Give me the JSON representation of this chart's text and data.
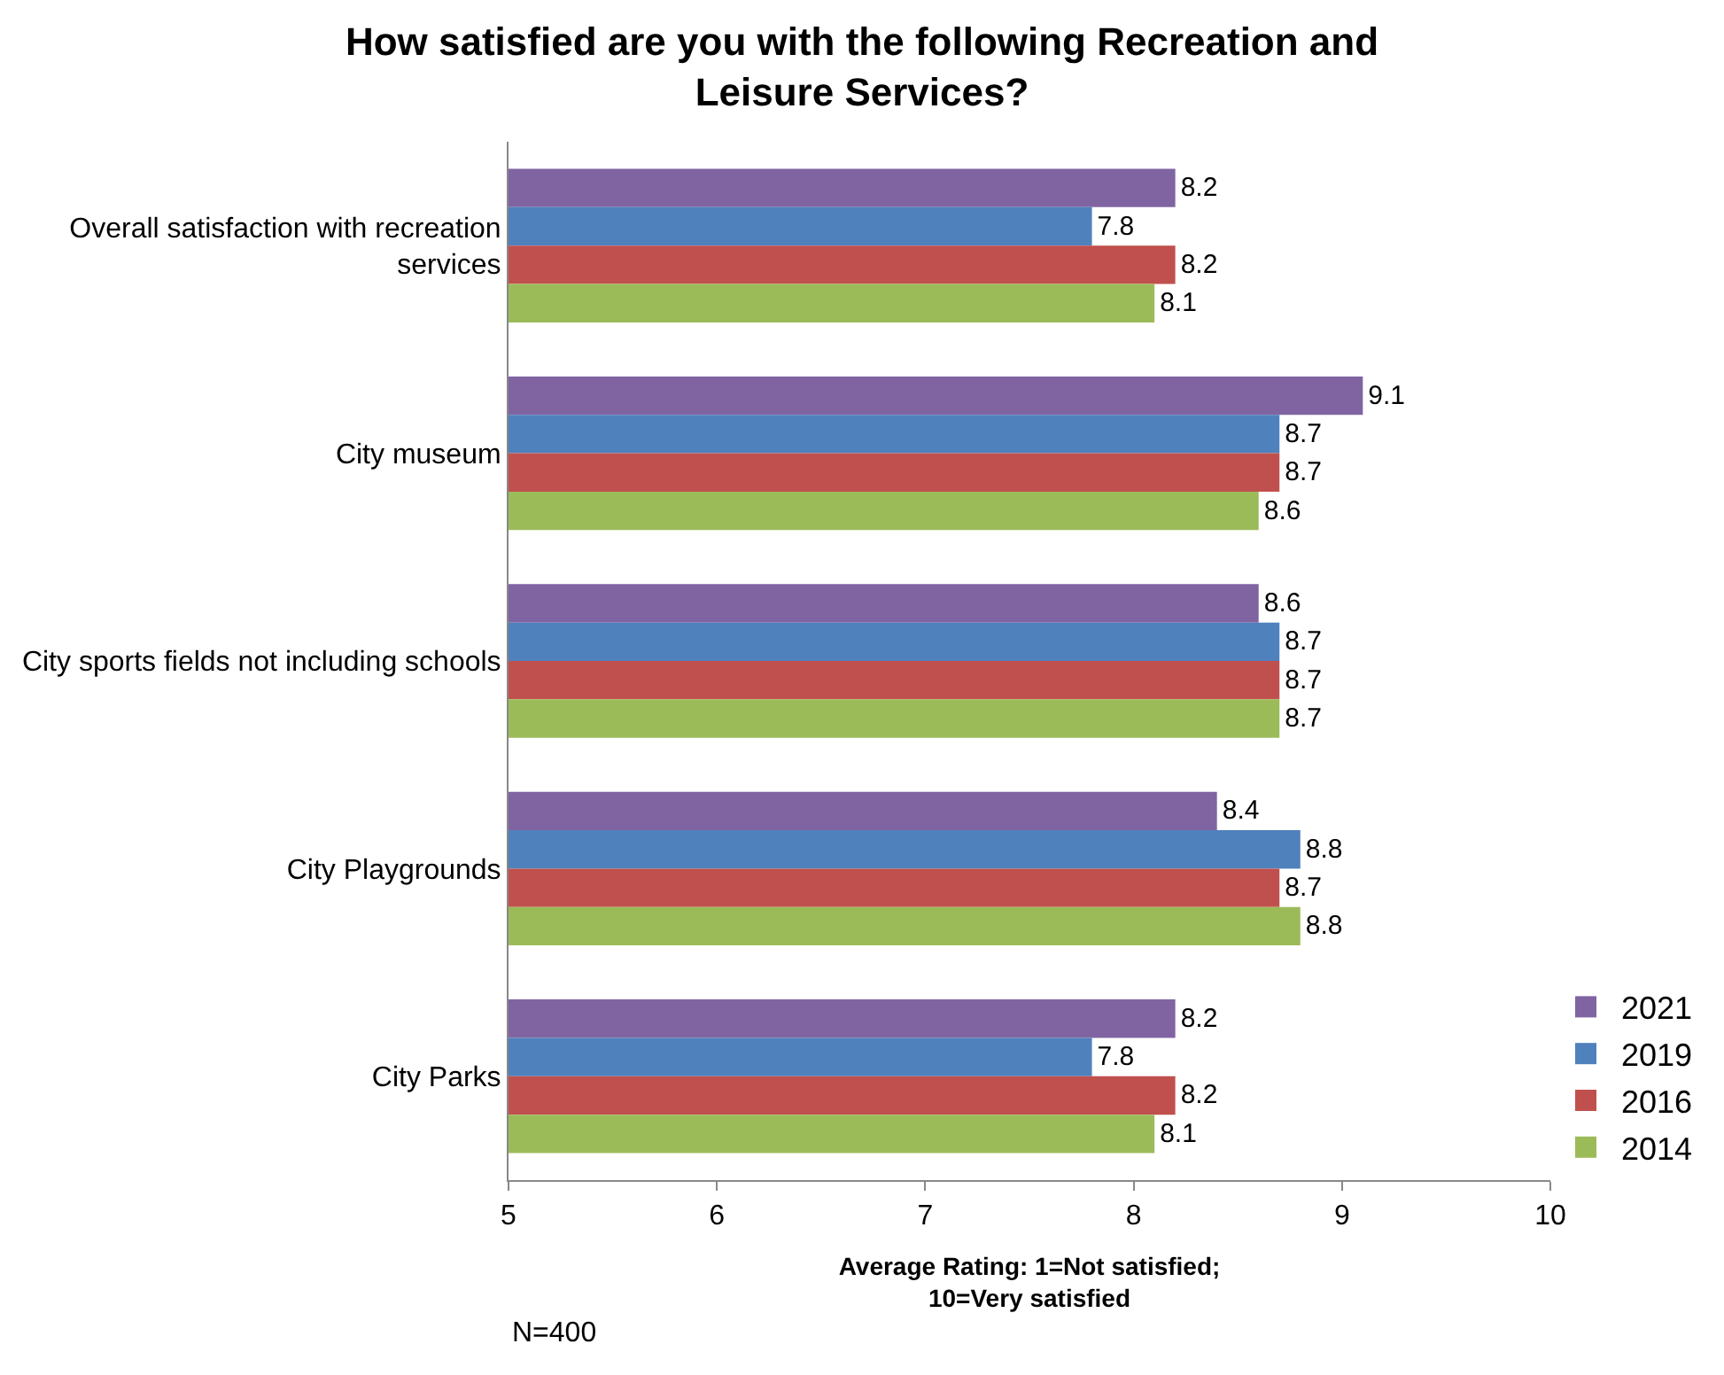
{
  "chart_data": {
    "type": "bar",
    "orientation": "horizontal",
    "title": "How satisfied are you with the following Recreation and\nLeisure Services?",
    "xlabel": "Average Rating: 1=Not satisfied;\n10=Very satisfied",
    "categories": [
      "Overall satisfaction with recreation\nservices",
      "City museum",
      "City sports fields not including schools",
      "City Playgrounds",
      "City Parks"
    ],
    "series": [
      {
        "name": "2021",
        "color": "#8064a2",
        "values": [
          8.2,
          9.1,
          8.6,
          8.4,
          8.2
        ]
      },
      {
        "name": "2019",
        "color": "#4f81bd",
        "values": [
          7.8,
          8.7,
          8.7,
          8.8,
          7.8
        ]
      },
      {
        "name": "2016",
        "color": "#c0504d",
        "values": [
          8.2,
          8.7,
          8.7,
          8.7,
          8.2
        ]
      },
      {
        "name": "2014",
        "color": "#9bbb59",
        "values": [
          8.1,
          8.6,
          8.7,
          8.8,
          8.1
        ]
      }
    ],
    "xlim": [
      5,
      10
    ],
    "xticks": [
      5,
      6,
      7,
      8,
      9,
      10
    ],
    "data_labels": true,
    "grid": false,
    "legend": "right",
    "annotations": [
      "N=400"
    ]
  }
}
